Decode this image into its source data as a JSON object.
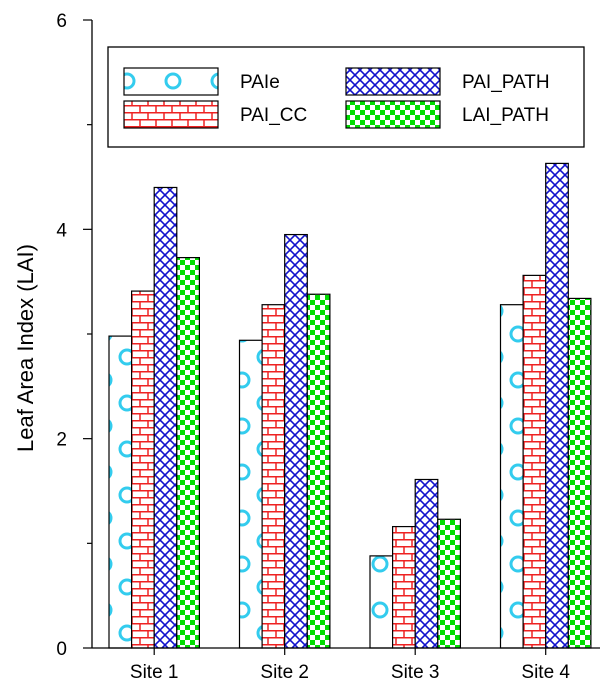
{
  "chart_data": {
    "type": "bar",
    "title": "",
    "xlabel": "",
    "ylabel": "Leaf Area Index (LAI)",
    "ylim": [
      0,
      6
    ],
    "yticks": [
      0,
      2,
      4,
      6
    ],
    "grid": false,
    "legend_position": "top",
    "categories": [
      "Site 1",
      "Site 2",
      "Site 3",
      "Site 4"
    ],
    "series": [
      {
        "name": "PAIe",
        "values": [
          2.98,
          2.94,
          0.88,
          3.28
        ],
        "pattern": "circles",
        "color": "#33ccee"
      },
      {
        "name": "PAI_CC",
        "values": [
          3.41,
          3.28,
          1.16,
          3.56
        ],
        "pattern": "brick",
        "color": "#ee2222"
      },
      {
        "name": "PAI_PATH",
        "values": [
          4.4,
          3.95,
          1.61,
          4.63
        ],
        "pattern": "crosshatch",
        "color": "#1111cc"
      },
      {
        "name": "LAI_PATH",
        "values": [
          3.73,
          3.38,
          1.23,
          3.34
        ],
        "pattern": "checker",
        "color": "#00dd00"
      }
    ]
  }
}
